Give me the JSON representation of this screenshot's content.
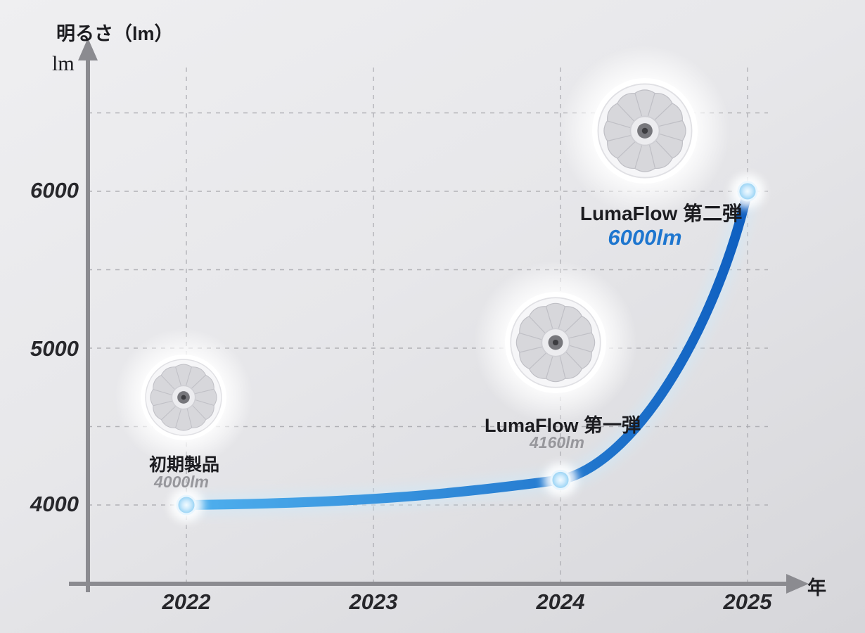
{
  "chart_data": {
    "type": "line",
    "title": "明るさ（lm）",
    "ylabel_unit": "lm",
    "xlabel": "年",
    "x_ticks": [
      "2022",
      "2023",
      "2024",
      "2025"
    ],
    "y_ticks": [
      "6000",
      "5000",
      "4000"
    ],
    "y_axis": {
      "min_value": 4000,
      "max_value": 6500,
      "grid_values": [
        4000,
        4500,
        5000,
        5500,
        6000,
        6500
      ]
    },
    "grid": "dashed",
    "series": [
      {
        "name": "brightness-over-years",
        "points": [
          {
            "x": 2022,
            "y": 4000
          },
          {
            "x": 2024,
            "y": 4160
          },
          {
            "x": 2025,
            "y": 6000
          }
        ]
      }
    ],
    "annotations": [
      {
        "name": "初期製品",
        "value": "4000lm"
      },
      {
        "name": "LumaFlow 第一弾",
        "value": "4160lm"
      },
      {
        "name": "LumaFlow 第二弾",
        "value": "6000lm"
      }
    ],
    "colors": {
      "line_gradient_start": "#4fb0ee",
      "line_gradient_end": "#0f5fc0",
      "marker": "#b5e3fb",
      "muted_value_text": "#97979c",
      "highlight_value_text": "#1e76cf",
      "axis": "#8b8b90"
    }
  }
}
